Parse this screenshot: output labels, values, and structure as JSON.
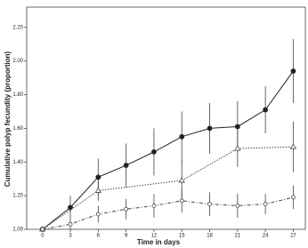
{
  "chart_data": {
    "type": "line",
    "xlabel": "Time in days",
    "ylabel": "Cumulative polyp fecundity (proportion)",
    "xlim": [
      -1.7,
      28.3
    ],
    "xticks": [
      0,
      3,
      6,
      9,
      12,
      15,
      18,
      21,
      24,
      27
    ],
    "ylim": [
      1.0,
      2.32
    ],
    "yticks": [
      {
        "value": 1.0,
        "label": "1.00"
      },
      {
        "value": 1.2,
        "label": "1.20"
      },
      {
        "value": 1.4,
        "label": "1.40"
      },
      {
        "value": 1.6,
        "label": "1.60"
      },
      {
        "value": 1.8,
        "label": "1.80"
      },
      {
        "value": 2.0,
        "label": "2.00"
      },
      {
        "value": 2.2,
        "label": "2.20"
      }
    ],
    "series": [
      {
        "color": "#222222",
        "line": "solid",
        "marker": "circle",
        "x": [
          0,
          3,
          6,
          9,
          12,
          15,
          18,
          21,
          24,
          27
        ],
        "values": [
          1.0,
          1.13,
          1.31,
          1.38,
          1.46,
          1.55,
          1.6,
          1.61,
          1.71,
          1.94
        ],
        "errors": [
          0,
          0.07,
          0.11,
          0.13,
          0.14,
          0.15,
          0.15,
          0.15,
          0.14,
          0.19
        ]
      },
      {
        "color": "#444444",
        "line": "dotted",
        "marker": "triangle",
        "x": [
          0,
          6,
          15,
          21,
          27
        ],
        "values": [
          1.0,
          1.23,
          1.29,
          1.48,
          1.49
        ],
        "errors": [
          0,
          0.06,
          0.12,
          0.11,
          0.15
        ]
      },
      {
        "color": "#444444",
        "line": "dashdot",
        "marker": "circle",
        "x": [
          0,
          3,
          6,
          9,
          12,
          15,
          18,
          21,
          24,
          27
        ],
        "values": [
          1.0,
          1.03,
          1.09,
          1.12,
          1.14,
          1.17,
          1.15,
          1.14,
          1.15,
          1.19
        ],
        "errors": [
          0,
          0.03,
          0.05,
          0.06,
          0.07,
          0.07,
          0.07,
          0.07,
          0.06,
          0.07
        ]
      }
    ]
  }
}
